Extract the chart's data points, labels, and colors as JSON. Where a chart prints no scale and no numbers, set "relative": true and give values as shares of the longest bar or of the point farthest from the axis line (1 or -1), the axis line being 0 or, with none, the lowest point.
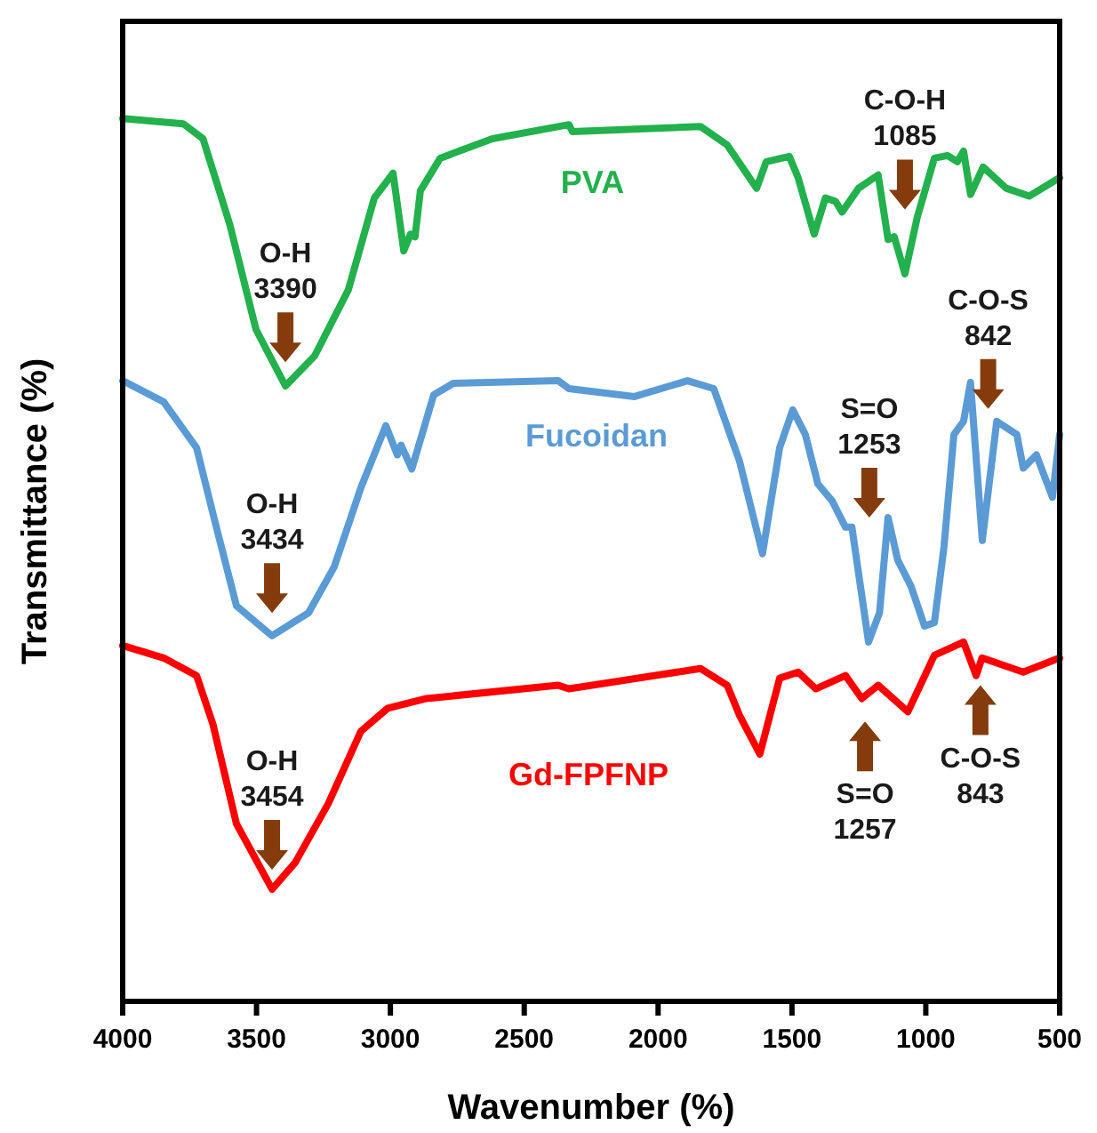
{
  "chart_data": {
    "type": "line",
    "relative": true,
    "xlabel": "Wavenumber (%)",
    "ylabel": "Transmittance (%)",
    "xlim": [
      4000,
      500
    ],
    "xticks": [
      4000,
      3500,
      3000,
      2500,
      2000,
      1500,
      1000,
      500
    ],
    "marker": "none",
    "line_style": "solid",
    "series": [
      {
        "name": "PVA",
        "color": "#22b14c",
        "x": [
          4000,
          3774,
          3700,
          3600,
          3502,
          3392,
          3283,
          3157,
          3060,
          2990,
          2950,
          2925,
          2908,
          2888,
          2814,
          2619,
          2333,
          2320,
          1842,
          1742,
          1632,
          1596,
          1510,
          1477,
          1417,
          1375,
          1337,
          1313,
          1251,
          1178,
          1141,
          1118,
          1078,
          1032,
          968,
          919,
          882,
          859,
          833,
          786,
          700,
          614,
          500
        ],
        "values": [
          1.0,
          0.994,
          0.977,
          0.88,
          0.761,
          0.697,
          0.731,
          0.806,
          0.91,
          0.938,
          0.85,
          0.869,
          0.866,
          0.918,
          0.955,
          0.977,
          0.993,
          0.985,
          0.991,
          0.97,
          0.921,
          0.951,
          0.957,
          0.933,
          0.869,
          0.91,
          0.906,
          0.894,
          0.921,
          0.936,
          0.863,
          0.866,
          0.824,
          0.888,
          0.955,
          0.958,
          0.951,
          0.963,
          0.914,
          0.945,
          0.921,
          0.912,
          0.933
        ]
      },
      {
        "name": "Fucoidan",
        "color": "#5b9bd5",
        "x": [
          4000,
          3847,
          3724,
          3650,
          3575,
          3442,
          3306,
          3210,
          3110,
          3017,
          2974,
          2960,
          2920,
          2838,
          2765,
          2373,
          2333,
          2088,
          1890,
          1792,
          1696,
          1610,
          1546,
          1497,
          1450,
          1403,
          1350,
          1300,
          1276,
          1214,
          1173,
          1141,
          1105,
          1055,
          1005,
          968,
          932,
          895,
          859,
          833,
          789,
          735,
          660,
          636,
          587,
          527,
          500
        ],
        "values": [
          0.703,
          0.679,
          0.627,
          0.537,
          0.448,
          0.414,
          0.44,
          0.492,
          0.582,
          0.652,
          0.619,
          0.63,
          0.603,
          0.687,
          0.7,
          0.703,
          0.694,
          0.685,
          0.703,
          0.694,
          0.612,
          0.507,
          0.627,
          0.67,
          0.642,
          0.586,
          0.567,
          0.537,
          0.537,
          0.407,
          0.44,
          0.548,
          0.5,
          0.47,
          0.425,
          0.429,
          0.515,
          0.642,
          0.657,
          0.701,
          0.522,
          0.657,
          0.642,
          0.604,
          0.619,
          0.571,
          0.642
        ]
      },
      {
        "name": "Gd-FPFNP",
        "color": "#ff0000",
        "x": [
          4000,
          3847,
          3724,
          3663,
          3575,
          3442,
          3356,
          3232,
          3110,
          3010,
          2865,
          2373,
          2333,
          1842,
          1742,
          1696,
          1620,
          1546,
          1477,
          1411,
          1300,
          1239,
          1178,
          1067,
          968,
          859,
          812,
          790,
          636,
          500
        ],
        "values": [
          0.403,
          0.389,
          0.369,
          0.314,
          0.201,
          0.127,
          0.157,
          0.224,
          0.306,
          0.332,
          0.343,
          0.358,
          0.354,
          0.377,
          0.358,
          0.324,
          0.28,
          0.366,
          0.373,
          0.354,
          0.369,
          0.343,
          0.358,
          0.328,
          0.392,
          0.407,
          0.369,
          0.389,
          0.373,
          0.389
        ]
      }
    ],
    "annotations": [
      "O-H\n3390",
      "C-O-H\n1085",
      "O-H\n3434",
      "S=O\n1253",
      "C-O-S\n842",
      "O-H\n3454",
      "S=O\n1257",
      "C-O-S\n843"
    ]
  }
}
